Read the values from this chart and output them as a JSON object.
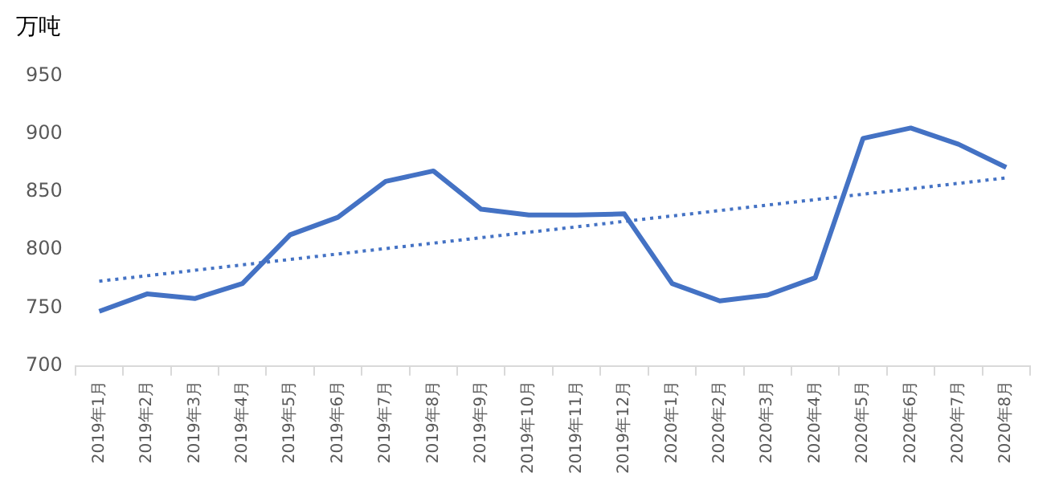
{
  "chart_data": {
    "type": "line",
    "ylabel": "万吨",
    "categories": [
      "2019年1月",
      "2019年2月",
      "2019年3月",
      "2019年4月",
      "2019年5月",
      "2019年6月",
      "2019年7月",
      "2019年8月",
      "2019年9月",
      "2019年10月",
      "2019年11月",
      "2019年12月",
      "2020年1月",
      "2020年2月",
      "2020年3月",
      "2020年4月",
      "2020年5月",
      "2020年6月",
      "2020年7月",
      "2020年8月"
    ],
    "series": [
      {
        "color": "#4472c4",
        "line_style": "solid",
        "values": [
          747,
          762,
          758,
          771,
          813,
          828,
          859,
          868,
          835,
          830,
          830,
          831,
          771,
          756,
          761,
          776,
          896,
          905,
          891,
          871
        ]
      },
      {
        "color": "#4472c4",
        "line_style": "dotted",
        "values": [
          773,
          null,
          null,
          null,
          null,
          null,
          null,
          null,
          null,
          null,
          null,
          null,
          null,
          null,
          null,
          null,
          null,
          null,
          null,
          862
        ]
      }
    ],
    "ylim": [
      700,
      950
    ],
    "yticks": [
      700,
      750,
      800,
      850,
      900,
      950
    ],
    "grid": false,
    "legend": false,
    "marker": "none"
  }
}
